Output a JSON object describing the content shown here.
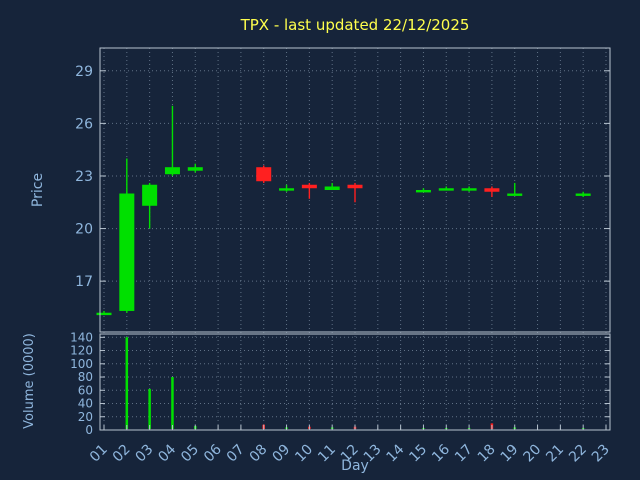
{
  "colors": {
    "background": "#16243a",
    "title": "#ffff4d",
    "axis_label": "#8fb6dd",
    "tick_label": "#8fb6dd",
    "grid": "#9db0c4",
    "border": "#b8c4d0",
    "up": "#00e000",
    "down": "#ff2020"
  },
  "chart_data": {
    "type": "candlestick",
    "title": "TPX - last updated 22/12/2025",
    "xlabel": "Day",
    "ylabel_price": "Price",
    "ylabel_volume": "Volume (0000)",
    "legend": "none",
    "grid": "dotted",
    "price_ticks": [
      17,
      20,
      23,
      26,
      29
    ],
    "price_range": [
      14.1,
      30.3
    ],
    "volume_ticks": [
      0,
      20,
      40,
      60,
      80,
      100,
      120,
      140
    ],
    "volume_range": [
      0,
      145
    ],
    "x_ticks": [
      "01",
      "02",
      "03",
      "04",
      "05",
      "06",
      "07",
      "08",
      "09",
      "10",
      "11",
      "12",
      "13",
      "14",
      "15",
      "16",
      "17",
      "18",
      "19",
      "20",
      "21",
      "22",
      "23"
    ],
    "candles": [
      {
        "day": 1,
        "open": 15.2,
        "high": 15.3,
        "low": 15.1,
        "close": 15.2,
        "volume": 0
      },
      {
        "day": 2,
        "open": 15.3,
        "high": 24.0,
        "low": 15.2,
        "close": 22.0,
        "volume": 140
      },
      {
        "day": 3,
        "open": 21.3,
        "high": 22.6,
        "low": 20.0,
        "close": 22.5,
        "volume": 62
      },
      {
        "day": 4,
        "open": 23.1,
        "high": 27.0,
        "low": 23.0,
        "close": 23.5,
        "volume": 80
      },
      {
        "day": 5,
        "open": 23.3,
        "high": 23.7,
        "low": 23.2,
        "close": 23.5,
        "volume": 6
      },
      {
        "day": 8,
        "open": 23.5,
        "high": 23.6,
        "low": 22.6,
        "close": 22.7,
        "volume": 8
      },
      {
        "day": 9,
        "open": 22.2,
        "high": 22.5,
        "low": 22.1,
        "close": 22.3,
        "volume": 4
      },
      {
        "day": 10,
        "open": 22.5,
        "high": 22.6,
        "low": 21.7,
        "close": 22.3,
        "volume": 5
      },
      {
        "day": 11,
        "open": 22.2,
        "high": 22.6,
        "low": 22.2,
        "close": 22.4,
        "volume": 4
      },
      {
        "day": 12,
        "open": 22.5,
        "high": 22.6,
        "low": 21.5,
        "close": 22.3,
        "volume": 5
      },
      {
        "day": 15,
        "open": 22.1,
        "high": 22.3,
        "low": 22.1,
        "close": 22.2,
        "volume": 3
      },
      {
        "day": 16,
        "open": 22.2,
        "high": 22.4,
        "low": 22.2,
        "close": 22.3,
        "volume": 3
      },
      {
        "day": 17,
        "open": 22.2,
        "high": 22.4,
        "low": 22.1,
        "close": 22.3,
        "volume": 3
      },
      {
        "day": 18,
        "open": 22.3,
        "high": 22.4,
        "low": 21.8,
        "close": 22.1,
        "volume": 10
      },
      {
        "day": 19,
        "open": 21.95,
        "high": 22.6,
        "low": 21.9,
        "close": 22.0,
        "volume": 4
      },
      {
        "day": 22,
        "open": 21.9,
        "high": 22.1,
        "low": 21.8,
        "close": 22.0,
        "volume": 3
      }
    ]
  }
}
